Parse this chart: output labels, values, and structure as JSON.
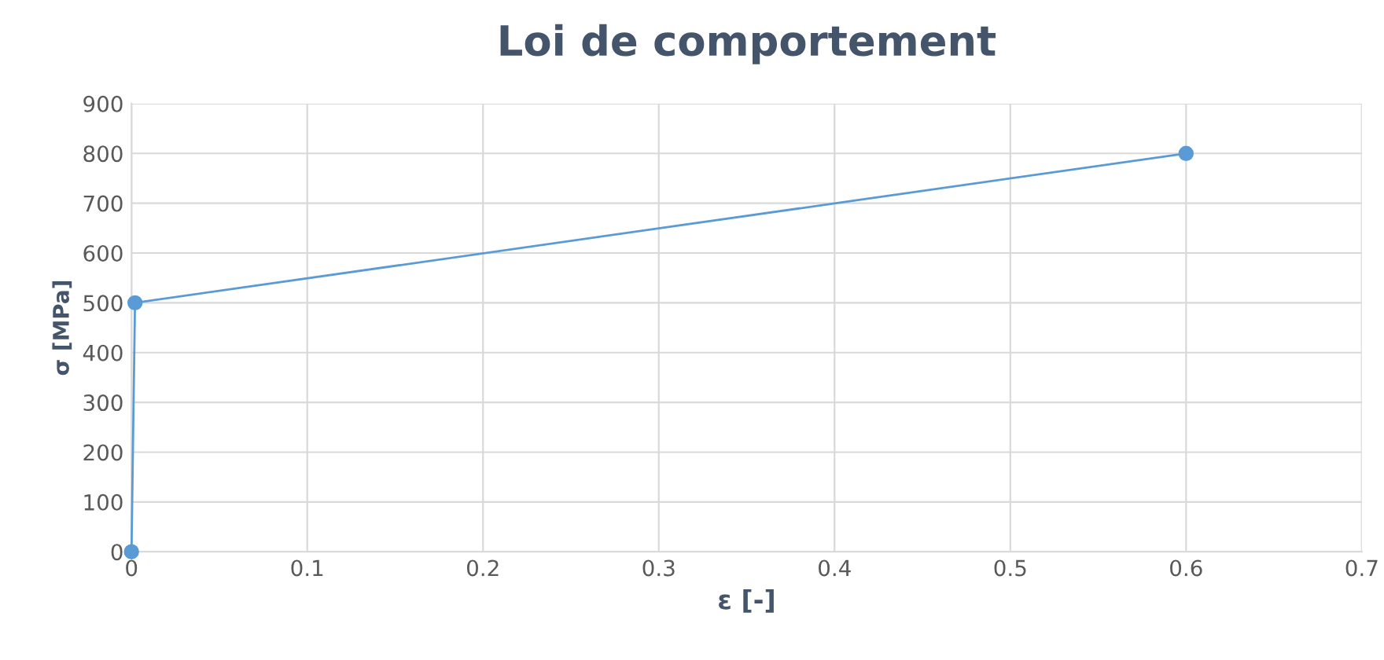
{
  "chart_data": {
    "type": "line",
    "title": "Loi de comportement",
    "xlabel": "ε [-]",
    "ylabel": "σ [MPa]",
    "x": [
      0,
      0.002,
      0.6
    ],
    "series": [
      {
        "color": "#5b9bd5",
        "values": [
          0,
          500,
          800
        ]
      }
    ],
    "xlim": [
      0,
      0.7
    ],
    "xticks": [
      0,
      0.1,
      0.2,
      0.3,
      0.4,
      0.5,
      0.6,
      0.7
    ],
    "ylim": [
      0,
      900
    ],
    "yticks": [
      0,
      100,
      200,
      300,
      400,
      500,
      600,
      700,
      800,
      900
    ],
    "grid": true,
    "marker": "circle",
    "line_style": "solid"
  }
}
